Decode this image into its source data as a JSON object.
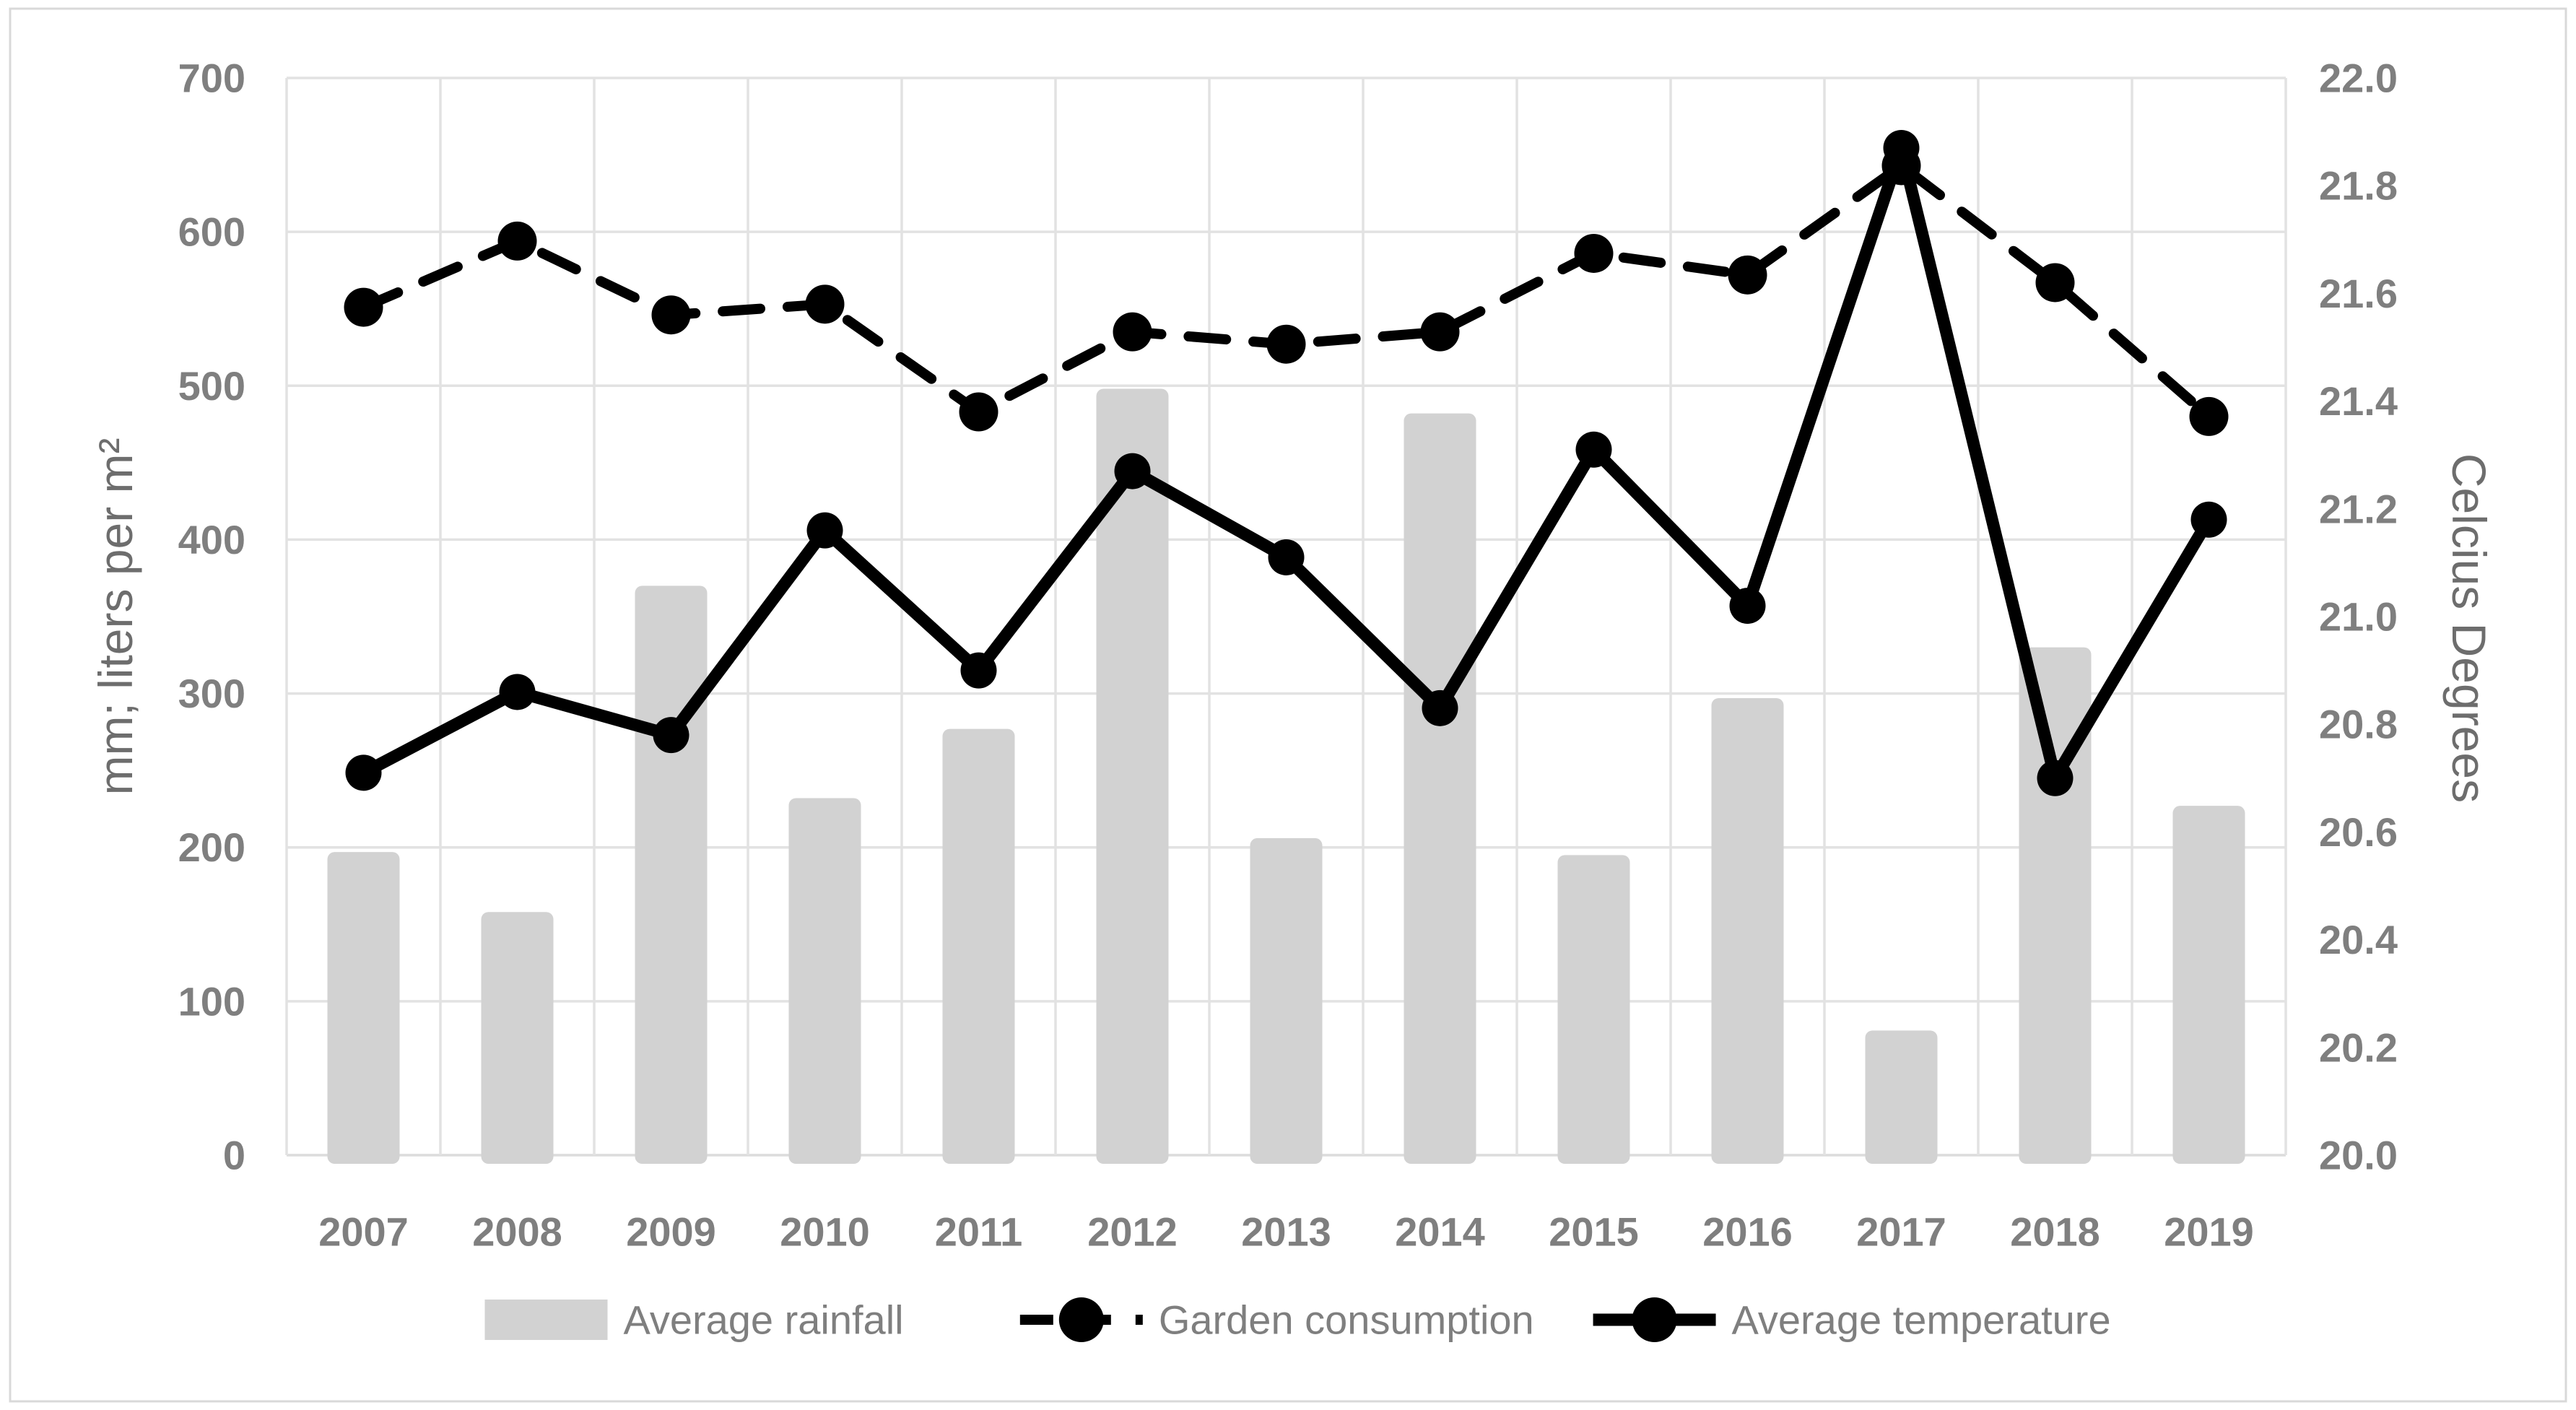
{
  "chart_data": {
    "type": "combo",
    "categories": [
      "2007",
      "2008",
      "2009",
      "2010",
      "2011",
      "2012",
      "2013",
      "2014",
      "2015",
      "2016",
      "2017",
      "2018",
      "2019"
    ],
    "series": [
      {
        "name": "Average rainfall",
        "type": "bar",
        "axis": "left",
        "values": [
          197,
          158,
          370,
          232,
          277,
          498,
          206,
          482,
          195,
          297,
          81,
          330,
          227
        ]
      },
      {
        "name": "Garden consumption",
        "type": "line-dashed",
        "axis": "left",
        "values": [
          551,
          594,
          546,
          553,
          483,
          535,
          527,
          535,
          586,
          572,
          643,
          567,
          480
        ]
      },
      {
        "name": "Average temperature",
        "type": "line-solid",
        "axis": "right",
        "values": [
          20.71,
          20.86,
          20.78,
          21.16,
          20.9,
          21.27,
          21.11,
          20.83,
          21.31,
          21.02,
          21.87,
          20.7,
          21.18
        ]
      }
    ],
    "left_axis": {
      "title": "mm; liters per m²",
      "min": 0,
      "max": 700,
      "step": 100,
      "tick_labels": [
        "0",
        "100",
        "200",
        "300",
        "400",
        "500",
        "600",
        "700"
      ]
    },
    "right_axis": {
      "title": "Celcius Degrees",
      "min": 20.0,
      "max": 22.0,
      "step": 0.2,
      "tick_labels": [
        "20.0",
        "20.2",
        "20.4",
        "20.6",
        "20.8",
        "21.0",
        "21.2",
        "21.4",
        "21.6",
        "21.8",
        "22.0"
      ]
    },
    "grid": true,
    "legend_position": "bottom",
    "colors": {
      "bar_fill": "#d2d2d2",
      "line_color": "#000000",
      "gridline": "#e2e2e2",
      "axis_line": "#dcdcdc",
      "tick_text": "#7f7f7f",
      "title_text": "#6d6d6d",
      "legend_text": "#7f7f7f",
      "chart_border": "#d9d9d9",
      "background": "#ffffff"
    }
  }
}
